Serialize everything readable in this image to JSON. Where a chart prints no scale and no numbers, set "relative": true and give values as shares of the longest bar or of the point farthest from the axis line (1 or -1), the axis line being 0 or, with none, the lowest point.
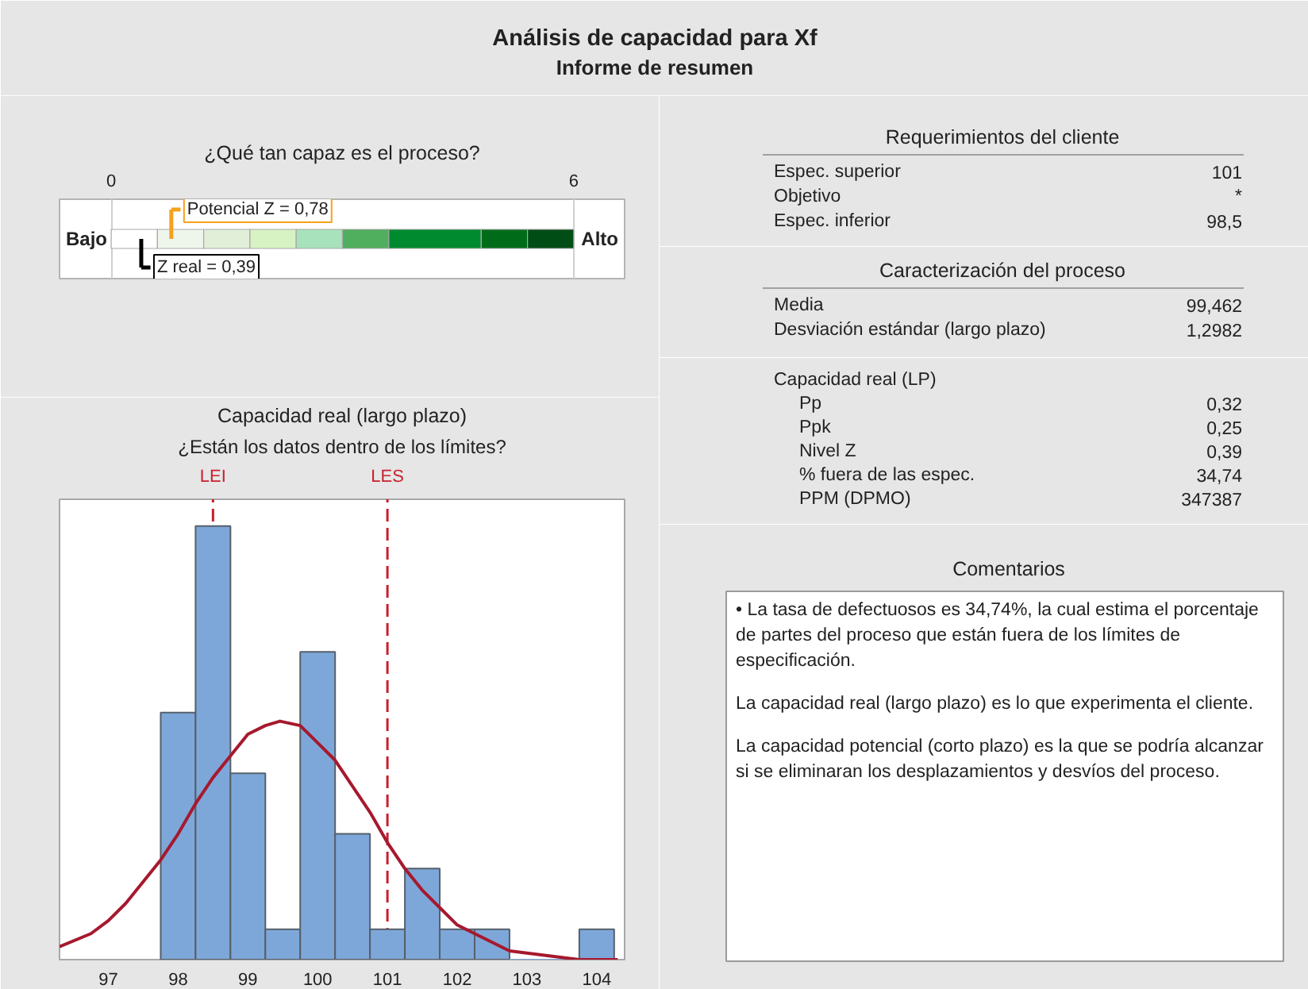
{
  "chart_data": [
    {
      "type": "other",
      "title": "Análisis de capacidad para Xf",
      "subtitle": "Informe de resumen"
    },
    {
      "type": "bar",
      "orientation": "horizontal",
      "stacked": true,
      "title": "¿Qué tan capaz es el proceso?",
      "categories": [
        null
      ],
      "xlim": [
        -0.67,
        6.66
      ],
      "xticks": [
        0,
        6
      ],
      "grid": "x",
      "series": [
        {
          "color": "#ffffff",
          "values": [
            0.6
          ]
        },
        {
          "color": "#eef6ec",
          "values": [
            0.6
          ]
        },
        {
          "color": "#e1efd9",
          "values": [
            0.6
          ]
        },
        {
          "color": "#d7f3c4",
          "values": [
            0.6
          ]
        },
        {
          "color": "#a8e2bc",
          "values": [
            0.6
          ]
        },
        {
          "color": "#50af5e",
          "values": [
            0.6
          ]
        },
        {
          "color": "#008a2f",
          "values": [
            1.2
          ]
        },
        {
          "color": "#006c1a",
          "values": [
            0.6
          ]
        },
        {
          "color": "#004d16",
          "values": [
            0.6
          ]
        }
      ],
      "ref_lines": [
        {
          "axis": "x",
          "value": 0.78,
          "label": "Potencial Z = 0,78",
          "color": "#f5a11c"
        },
        {
          "axis": "x",
          "value": 0.39,
          "label": "Z real = 0,39",
          "color": "#000000"
        }
      ],
      "annotations": [
        "Bajo",
        "Alto"
      ]
    },
    {
      "type": "histogram",
      "title": "Capacidad real (largo plazo)",
      "subtitle": "¿Están los datos dentro de los límites?",
      "relative": true,
      "xlim": [
        96.3,
        104.4
      ],
      "xticks": [
        97,
        98,
        99,
        100,
        101,
        102,
        103,
        104
      ],
      "series": [
        {
          "type": "histogram",
          "color": "#7ea7d9",
          "bins": [
            97.75,
            98.25,
            98.75,
            99.25,
            99.75,
            100.25,
            100.75,
            101.25,
            101.75,
            102.25,
            102.75,
            103.25,
            103.75,
            104.25
          ],
          "values": [
            0.57,
            1,
            0.43,
            0.07,
            0.71,
            0.29,
            0.07,
            0.21,
            0.07,
            0.07,
            0,
            0,
            0.07
          ]
        },
        {
          "type": "line",
          "color": "#a6192e",
          "x": [
            96.3,
            96.75,
            97,
            97.25,
            97.75,
            98,
            98.25,
            98.5,
            98.75,
            99,
            99.25,
            99.46,
            99.75,
            100,
            100.25,
            100.5,
            100.75,
            101,
            101.25,
            101.5,
            101.75,
            102,
            102.25,
            102.75,
            103.25,
            103.75,
            104.3
          ],
          "values": [
            0.03,
            0.06,
            0.09,
            0.13,
            0.23,
            0.29,
            0.36,
            0.42,
            0.47,
            0.52,
            0.54,
            0.55,
            0.54,
            0.5,
            0.46,
            0.4,
            0.34,
            0.27,
            0.21,
            0.16,
            0.12,
            0.08,
            0.06,
            0.02,
            0.01,
            0,
            0
          ]
        }
      ],
      "ref_lines": [
        {
          "axis": "x",
          "value": 98.5,
          "label": "LEI",
          "color": "#c8202e",
          "line_style": "dashed"
        },
        {
          "axis": "x",
          "value": 101,
          "label": "LES",
          "color": "#c8202e",
          "line_style": "dashed"
        }
      ]
    },
    {
      "type": "other",
      "title": "Requerimientos del cliente",
      "annotations": [
        "Espec. superior",
        "101",
        "Objetivo",
        "*",
        "Espec. inferior",
        "98,5"
      ]
    },
    {
      "type": "other",
      "title": "Caracterización del proceso",
      "annotations": [
        "Media",
        "99,462",
        "Desviación estándar (largo plazo)",
        "1,2982"
      ]
    },
    {
      "type": "other",
      "subtitle": "Capacidad real (LP)",
      "annotations": [
        "Pp",
        "0,32",
        "Ppk",
        "0,25",
        "Nivel Z",
        "0,39",
        "% fuera de las espec.",
        "34,74",
        "PPM (DPMO)",
        "347387"
      ]
    },
    {
      "type": "other",
      "title": "Comentarios",
      "annotations": [
        "• La tasa de defectuosos es 34,74%, la cual estima el porcentaje de partes del proceso que están fuera de los límites de especificación.",
        "La capacidad real (largo plazo) es lo que experimenta el cliente.",
        "La capacidad potencial (corto plazo) es la que se podría alcanzar si se eliminaran los desplazamientos y desvíos del proceso."
      ]
    }
  ]
}
